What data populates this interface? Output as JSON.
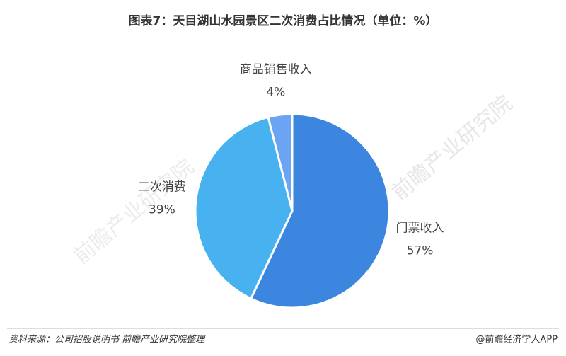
{
  "chart_data": {
    "type": "pie",
    "title": "图表7：天目湖山水园景区二次消费占比情况（单位：%）",
    "categories": [
      "门票收入",
      "二次消费",
      "商品销售收入"
    ],
    "values": [
      57,
      39,
      4
    ],
    "value_labels": [
      "57%",
      "39%",
      "4%"
    ],
    "colors": [
      "#3d86e0",
      "#47b2ef",
      "#6aa4f2"
    ],
    "watermark": "前瞻产业研究院",
    "source": "资料来源：公司招股说明书 前瞻产业研究院整理",
    "credit": "@前瞻经济学人APP"
  }
}
